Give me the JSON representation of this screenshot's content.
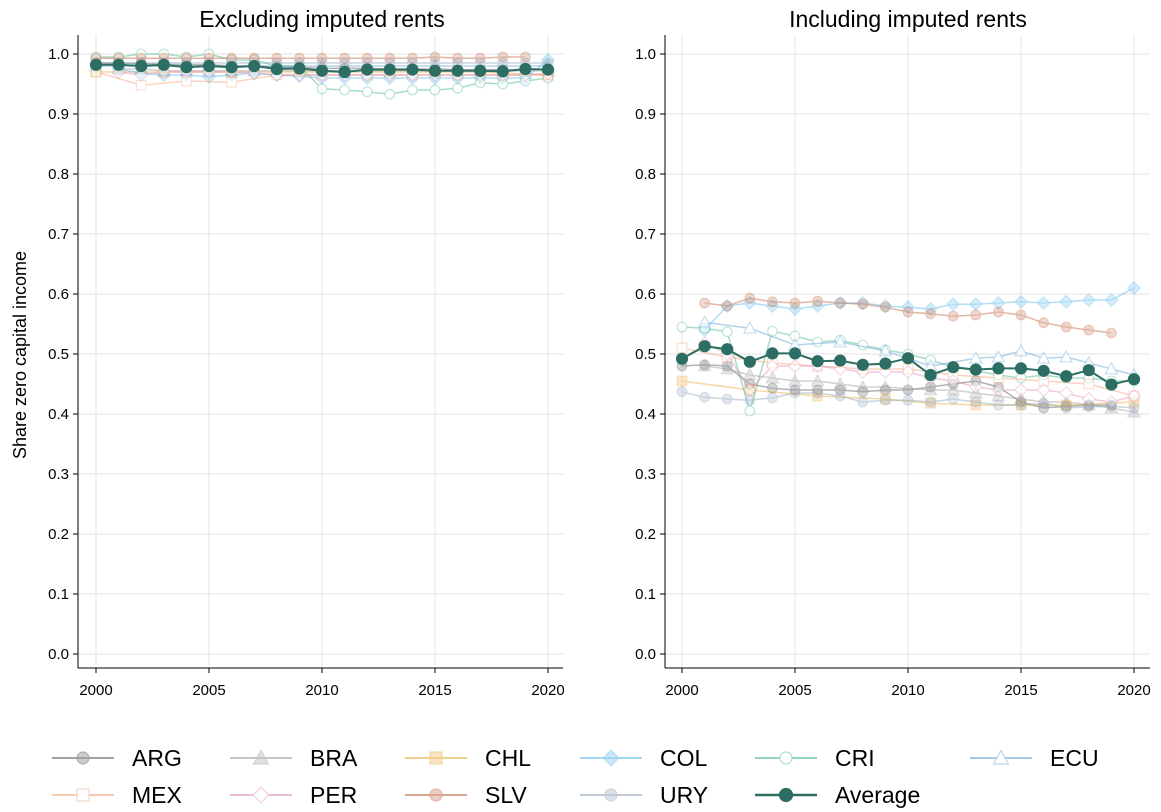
{
  "chart_data": [
    {
      "type": "line",
      "title": "Excluding imputed rents",
      "xlabel": "",
      "ylabel": "Share zero capital income",
      "xlim": [
        2000,
        2020
      ],
      "ylim": [
        0.0,
        1.0
      ],
      "x_ticks": [
        "2000",
        "2005",
        "2010",
        "2015",
        "2020"
      ],
      "y_ticks": [
        "0.0",
        "0.1",
        "0.2",
        "0.3",
        "0.4",
        "0.5",
        "0.6",
        "0.7",
        "0.8",
        "0.9",
        "1.0"
      ],
      "grid": true,
      "series": [
        {
          "name": "ARG",
          "x": [
            2000,
            2001,
            2002,
            2003,
            2004,
            2005,
            2006,
            2007,
            2008,
            2009,
            2010,
            2011,
            2012,
            2013,
            2014,
            2015,
            2016,
            2017,
            2018,
            2019
          ],
          "values": [
            0.985,
            0.985,
            0.984,
            0.983,
            0.982,
            0.982,
            0.98,
            0.98,
            0.978,
            0.978,
            0.976,
            0.976,
            0.976,
            0.975,
            0.975,
            0.975,
            0.974,
            0.974,
            0.974,
            0.974
          ]
        },
        {
          "name": "BRA",
          "x": [
            2001,
            2002,
            2003,
            2004,
            2005,
            2006,
            2007,
            2008,
            2009,
            2011,
            2012,
            2013,
            2014,
            2015,
            2016,
            2017,
            2018,
            2019,
            2020
          ],
          "values": [
            0.975,
            0.975,
            0.972,
            0.972,
            0.972,
            0.972,
            0.972,
            0.972,
            0.972,
            0.972,
            0.972,
            0.972,
            0.972,
            0.972,
            0.972,
            0.972,
            0.972,
            0.972,
            0.972
          ]
        },
        {
          "name": "CHL",
          "x": [
            2000,
            2003,
            2006,
            2009,
            2011,
            2013,
            2015,
            2017,
            2020
          ],
          "values": [
            0.97,
            0.97,
            0.97,
            0.97,
            0.97,
            0.97,
            0.97,
            0.97,
            0.965
          ]
        },
        {
          "name": "COL",
          "x": [
            2001,
            2002,
            2003,
            2004,
            2005,
            2006,
            2007,
            2008,
            2009,
            2010,
            2011,
            2012,
            2013,
            2014,
            2015,
            2016,
            2017,
            2018,
            2019,
            2020
          ],
          "values": [
            0.975,
            0.968,
            0.965,
            0.965,
            0.962,
            0.965,
            0.968,
            0.965,
            0.963,
            0.96,
            0.96,
            0.96,
            0.96,
            0.96,
            0.96,
            0.96,
            0.96,
            0.96,
            0.96,
            0.99
          ]
        },
        {
          "name": "CRI",
          "x": [
            2000,
            2001,
            2002,
            2003,
            2004,
            2005,
            2006,
            2007,
            2008,
            2009,
            2010,
            2011,
            2012,
            2013,
            2014,
            2015,
            2016,
            2017,
            2018,
            2019,
            2020
          ],
          "values": [
            0.995,
            0.995,
            1.0,
            1.0,
            0.995,
            1.0,
            0.99,
            0.99,
            0.98,
            0.98,
            0.942,
            0.94,
            0.937,
            0.933,
            0.94,
            0.94,
            0.943,
            0.952,
            0.95,
            0.955,
            0.96
          ]
        },
        {
          "name": "ECU",
          "x": [
            2000,
            2005,
            2010,
            2015,
            2020
          ],
          "values": [
            0.98,
            0.98,
            0.98,
            0.98,
            0.98
          ]
        },
        {
          "name": "MEX",
          "x": [
            2000,
            2002,
            2004,
            2006,
            2008,
            2010,
            2012,
            2014,
            2016,
            2018,
            2020
          ],
          "values": [
            0.97,
            0.948,
            0.955,
            0.953,
            0.965,
            0.965,
            0.965,
            0.965,
            0.965,
            0.965,
            0.965
          ]
        },
        {
          "name": "PER",
          "x": [
            2001,
            2002,
            2003,
            2004,
            2005,
            2006,
            2007,
            2008,
            2009,
            2010,
            2011,
            2012,
            2013,
            2014,
            2015,
            2016,
            2017,
            2018,
            2019,
            2020
          ],
          "values": [
            0.97,
            0.965,
            0.97,
            0.97,
            0.97,
            0.97,
            0.968,
            0.965,
            0.965,
            0.965,
            0.965,
            0.965,
            0.965,
            0.965,
            0.965,
            0.965,
            0.965,
            0.965,
            0.965,
            0.968
          ]
        },
        {
          "name": "SLV",
          "x": [
            2000,
            2001,
            2002,
            2003,
            2004,
            2005,
            2006,
            2007,
            2008,
            2009,
            2010,
            2011,
            2012,
            2013,
            2014,
            2015,
            2016,
            2017,
            2018,
            2019
          ],
          "values": [
            0.993,
            0.993,
            0.993,
            0.993,
            0.993,
            0.993,
            0.993,
            0.993,
            0.993,
            0.993,
            0.993,
            0.993,
            0.993,
            0.993,
            0.993,
            0.995,
            0.993,
            0.993,
            0.995,
            0.995
          ]
        },
        {
          "name": "URY",
          "x": [
            2000,
            2001,
            2002,
            2003,
            2004,
            2005,
            2006,
            2007,
            2008,
            2009,
            2010,
            2011,
            2012,
            2013,
            2014,
            2015,
            2016,
            2017,
            2018,
            2019,
            2020
          ],
          "values": [
            0.985,
            0.985,
            0.985,
            0.985,
            0.985,
            0.985,
            0.985,
            0.985,
            0.985,
            0.985,
            0.985,
            0.985,
            0.985,
            0.985,
            0.985,
            0.985,
            0.985,
            0.985,
            0.985,
            0.985,
            0.985
          ]
        },
        {
          "name": "Average",
          "x": [
            2000,
            2001,
            2002,
            2003,
            2004,
            2005,
            2006,
            2007,
            2008,
            2009,
            2010,
            2011,
            2012,
            2013,
            2014,
            2015,
            2016,
            2017,
            2018,
            2019,
            2020
          ],
          "values": [
            0.982,
            0.982,
            0.98,
            0.982,
            0.978,
            0.98,
            0.978,
            0.98,
            0.975,
            0.976,
            0.972,
            0.97,
            0.974,
            0.974,
            0.974,
            0.972,
            0.972,
            0.972,
            0.971,
            0.975,
            0.974
          ]
        }
      ]
    },
    {
      "type": "line",
      "title": "Including imputed rents",
      "xlabel": "",
      "ylabel": "",
      "xlim": [
        2000,
        2020
      ],
      "ylim": [
        0.0,
        1.0
      ],
      "x_ticks": [
        "2000",
        "2005",
        "2010",
        "2015",
        "2020"
      ],
      "y_ticks": [
        "0.0",
        "0.1",
        "0.2",
        "0.3",
        "0.4",
        "0.5",
        "0.6",
        "0.7",
        "0.8",
        "0.9",
        "1.0"
      ],
      "grid": true,
      "series": [
        {
          "name": "ARG",
          "x": [
            2000,
            2001,
            2002,
            2003,
            2004,
            2005,
            2006,
            2007,
            2008,
            2009,
            2010,
            2011,
            2012,
            2013,
            2014,
            2015,
            2016,
            2017,
            2018,
            2019
          ],
          "values": [
            0.48,
            0.482,
            0.48,
            0.45,
            0.443,
            0.44,
            0.44,
            0.44,
            0.437,
            0.44,
            0.44,
            0.445,
            0.45,
            0.455,
            0.445,
            0.42,
            0.41,
            0.413,
            0.415,
            0.415
          ]
        },
        {
          "name": "BRA",
          "x": [
            2001,
            2002,
            2003,
            2004,
            2005,
            2006,
            2007,
            2008,
            2009,
            2011,
            2012,
            2013,
            2014,
            2015,
            2016,
            2017,
            2018,
            2019,
            2020
          ],
          "values": [
            0.48,
            0.475,
            0.465,
            0.46,
            0.455,
            0.455,
            0.45,
            0.445,
            0.445,
            0.44,
            0.44,
            0.435,
            0.43,
            0.425,
            0.42,
            0.42,
            0.415,
            0.41,
            0.403
          ]
        },
        {
          "name": "CHL",
          "x": [
            2000,
            2003,
            2006,
            2009,
            2011,
            2013,
            2015,
            2017,
            2020
          ],
          "values": [
            0.455,
            0.44,
            0.43,
            0.425,
            0.418,
            0.415,
            0.415,
            0.415,
            0.42
          ]
        },
        {
          "name": "COL",
          "x": [
            2001,
            2002,
            2003,
            2004,
            2005,
            2006,
            2007,
            2008,
            2009,
            2010,
            2011,
            2012,
            2013,
            2014,
            2015,
            2016,
            2017,
            2018,
            2019,
            2020
          ],
          "values": [
            0.54,
            0.58,
            0.585,
            0.58,
            0.575,
            0.58,
            0.585,
            0.585,
            0.58,
            0.578,
            0.575,
            0.583,
            0.583,
            0.585,
            0.587,
            0.585,
            0.587,
            0.59,
            0.59,
            0.61
          ]
        },
        {
          "name": "CRI",
          "x": [
            2000,
            2001,
            2002,
            2003,
            2004,
            2005,
            2006,
            2007,
            2008,
            2009,
            2010,
            2011,
            2012,
            2013,
            2014,
            2015,
            2016,
            2017,
            2018,
            2019,
            2020
          ],
          "values": [
            0.545,
            0.543,
            0.537,
            0.405,
            0.538,
            0.53,
            0.52,
            0.523,
            0.515,
            0.507,
            0.5,
            0.49,
            0.478,
            0.472,
            0.465,
            0.46,
            0.465,
            0.46,
            0.46,
            0.455,
            0.455
          ]
        },
        {
          "name": "ECU",
          "x": [
            2001,
            2003,
            2005,
            2007,
            2009,
            2011,
            2013,
            2014,
            2015,
            2016,
            2017,
            2018,
            2019,
            2020
          ],
          "values": [
            0.553,
            0.543,
            0.515,
            0.52,
            0.505,
            0.48,
            0.493,
            0.495,
            0.505,
            0.493,
            0.495,
            0.485,
            0.475,
            0.465
          ]
        },
        {
          "name": "MEX",
          "x": [
            2000,
            2002,
            2004,
            2006,
            2008,
            2010,
            2012,
            2014,
            2016,
            2018,
            2020
          ],
          "values": [
            0.51,
            0.495,
            0.485,
            0.48,
            0.475,
            0.475,
            0.465,
            0.46,
            0.455,
            0.45,
            0.43
          ]
        },
        {
          "name": "PER",
          "x": [
            2001,
            2002,
            2003,
            2004,
            2005,
            2006,
            2007,
            2008,
            2009,
            2010,
            2011,
            2012,
            2013,
            2014,
            2015,
            2016,
            2017,
            2018,
            2019,
            2020
          ],
          "values": [
            0.518,
            0.5,
            0.44,
            0.48,
            0.48,
            0.48,
            0.475,
            0.47,
            0.47,
            0.47,
            0.46,
            0.455,
            0.445,
            0.44,
            0.44,
            0.44,
            0.435,
            0.425,
            0.42,
            0.43
          ]
        },
        {
          "name": "SLV",
          "x": [
            2001,
            2002,
            2003,
            2004,
            2005,
            2006,
            2007,
            2008,
            2009,
            2010,
            2011,
            2012,
            2013,
            2014,
            2015,
            2016,
            2017,
            2018,
            2019
          ],
          "values": [
            0.585,
            0.58,
            0.593,
            0.587,
            0.585,
            0.588,
            0.585,
            0.583,
            0.578,
            0.57,
            0.567,
            0.563,
            0.565,
            0.57,
            0.565,
            0.552,
            0.545,
            0.54,
            0.535
          ]
        },
        {
          "name": "URY",
          "x": [
            2000,
            2001,
            2002,
            2003,
            2004,
            2005,
            2006,
            2007,
            2008,
            2009,
            2010,
            2011,
            2012,
            2013,
            2014,
            2015,
            2016,
            2017,
            2018,
            2019,
            2020
          ],
          "values": [
            0.437,
            0.428,
            0.425,
            0.423,
            0.427,
            0.435,
            0.435,
            0.43,
            0.42,
            0.423,
            0.423,
            0.42,
            0.425,
            0.42,
            0.415,
            0.415,
            0.418,
            0.41,
            0.412,
            0.413,
            0.41
          ]
        },
        {
          "name": "Average",
          "x": [
            2000,
            2001,
            2002,
            2003,
            2004,
            2005,
            2006,
            2007,
            2008,
            2009,
            2010,
            2011,
            2012,
            2013,
            2014,
            2015,
            2016,
            2017,
            2018,
            2019,
            2020
          ],
          "values": [
            0.492,
            0.513,
            0.508,
            0.487,
            0.501,
            0.501,
            0.488,
            0.489,
            0.482,
            0.484,
            0.493,
            0.465,
            0.478,
            0.474,
            0.476,
            0.476,
            0.472,
            0.463,
            0.473,
            0.449,
            0.458
          ]
        }
      ]
    }
  ],
  "legend": {
    "items": [
      {
        "label": "ARG",
        "color": "#555555",
        "marker": "circle"
      },
      {
        "label": "BRA",
        "color": "#999999",
        "marker": "triangle"
      },
      {
        "label": "CHL",
        "color": "#e8a836",
        "marker": "square"
      },
      {
        "label": "COL",
        "color": "#56b4e9",
        "marker": "diamond"
      },
      {
        "label": "CRI",
        "color": "#3cb48a",
        "marker": "circle-open"
      },
      {
        "label": "ECU",
        "color": "#5a9fd4",
        "marker": "triangle-open"
      },
      {
        "label": "MEX",
        "color": "#f0a070",
        "marker": "square-open"
      },
      {
        "label": "PER",
        "color": "#e08ab8",
        "marker": "diamond-open"
      },
      {
        "label": "SLV",
        "color": "#c0603a",
        "marker": "circle"
      },
      {
        "label": "URY",
        "color": "#8aa0b8",
        "marker": "circle"
      },
      {
        "label": "Average",
        "color": "#2c6e63",
        "marker": "circle"
      }
    ]
  }
}
